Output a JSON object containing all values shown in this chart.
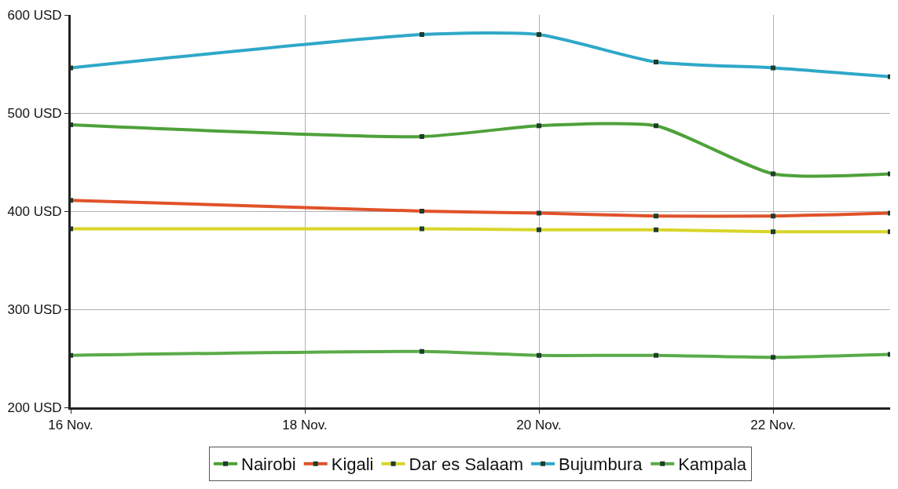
{
  "chart_data": {
    "type": "line",
    "x": [
      "--11-16",
      "--11-19",
      "--11-20",
      "--11-21",
      "--11-22",
      "--11-23"
    ],
    "series": [
      {
        "name": "Nairobi",
        "color": "#4ea13a",
        "values": [
          488,
          476,
          487,
          487,
          438,
          438
        ]
      },
      {
        "name": "Kigali",
        "color": "#e0522a",
        "values": [
          411,
          400,
          398,
          395,
          395,
          398
        ]
      },
      {
        "name": "Dar es Salaam",
        "color": "#d8d52a",
        "values": [
          382,
          382,
          381,
          381,
          379,
          379
        ]
      },
      {
        "name": "Bujumbura",
        "color": "#2fa8c8",
        "values": [
          546,
          580,
          580,
          552,
          546,
          537
        ]
      },
      {
        "name": "Kampala",
        "color": "#5aab48",
        "values": [
          253,
          257,
          253,
          253,
          251,
          254
        ]
      }
    ],
    "xlim": [
      "--11-16",
      "--11-23"
    ],
    "xticks": [
      {
        "value": "--11-16",
        "label": "16 Nov."
      },
      {
        "value": "--11-18",
        "label": "18 Nov."
      },
      {
        "value": "--11-20",
        "label": "20 Nov."
      },
      {
        "value": "--11-22",
        "label": "22 Nov."
      }
    ],
    "ylim": [
      200,
      600
    ],
    "yticks": [
      {
        "value": 200,
        "label": "200 USD"
      },
      {
        "value": 300,
        "label": "300 USD"
      },
      {
        "value": 400,
        "label": "400 USD"
      },
      {
        "value": 500,
        "label": "500 USD"
      },
      {
        "value": 600,
        "label": "600 USD"
      }
    ],
    "grid": true,
    "legend": "bottom",
    "marker": "square",
    "line_style": "solid"
  }
}
